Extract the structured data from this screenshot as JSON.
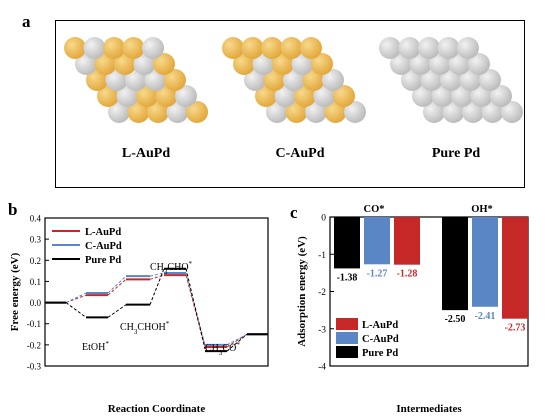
{
  "panels": {
    "a": "a",
    "b": "b",
    "c": "c"
  },
  "models": [
    {
      "label": "L-AuPd",
      "type": "L"
    },
    {
      "label": "C-AuPd",
      "type": "C"
    },
    {
      "label": "Pure Pd",
      "type": "P"
    }
  ],
  "colors": {
    "gold": "#E3A93D",
    "silver": "#BDBDBD",
    "L-AuPd": "#C62828",
    "C-AuPd": "#5B86C5",
    "Pure Pd": "#000000"
  },
  "chart_data": [
    {
      "type": "line",
      "title": "",
      "xlabel": "Reaction Coordinate",
      "ylabel": "Free energy (eV)",
      "ylim": [
        -0.3,
        0.4
      ],
      "yticks": [
        -0.3,
        -0.2,
        -0.1,
        0.0,
        0.1,
        0.2,
        0.3,
        0.4
      ],
      "legend": {
        "placement": "top-left",
        "entries": [
          "L-AuPd",
          "C-AuPd",
          "Pure Pd"
        ]
      },
      "annotations": [
        "CH3CHO*",
        "CH3CHOH*",
        "EtOH*",
        "CH3CO*"
      ],
      "steps": [
        "initial",
        "EtOH*",
        "CH3CHOH*",
        "CH3CHO*",
        "CH3CO*",
        "final"
      ],
      "series": [
        {
          "name": "L-AuPd",
          "values": [
            0.0,
            0.035,
            0.11,
            0.13,
            -0.21,
            -0.15
          ]
        },
        {
          "name": "C-AuPd",
          "values": [
            0.0,
            0.045,
            0.125,
            0.14,
            -0.2,
            -0.15
          ]
        },
        {
          "name": "Pure Pd",
          "values": [
            0.0,
            -0.07,
            -0.01,
            0.16,
            -0.22,
            -0.15
          ]
        }
      ]
    },
    {
      "type": "bar",
      "title": "",
      "xlabel": "Intermediates",
      "ylabel": "Adsorption energy (eV)",
      "ylim": [
        -4,
        0
      ],
      "yticks": [
        0,
        -1,
        -2,
        -3,
        -4
      ],
      "categories": [
        "CO*",
        "OH*"
      ],
      "legend": {
        "placement": "bottom-left",
        "entries": [
          "L-AuPd",
          "C-AuPd",
          "Pure Pd"
        ]
      },
      "series": [
        {
          "name": "Pure Pd",
          "values": [
            -1.38,
            -2.5
          ],
          "labels": [
            "-1.38",
            "-2.50"
          ]
        },
        {
          "name": "C-AuPd",
          "values": [
            -1.27,
            -2.41
          ],
          "labels": [
            "-1.27",
            "-2.41"
          ]
        },
        {
          "name": "L-AuPd",
          "values": [
            -1.28,
            -2.73
          ],
          "labels": [
            "-1.28",
            "-2.73"
          ]
        }
      ]
    }
  ]
}
